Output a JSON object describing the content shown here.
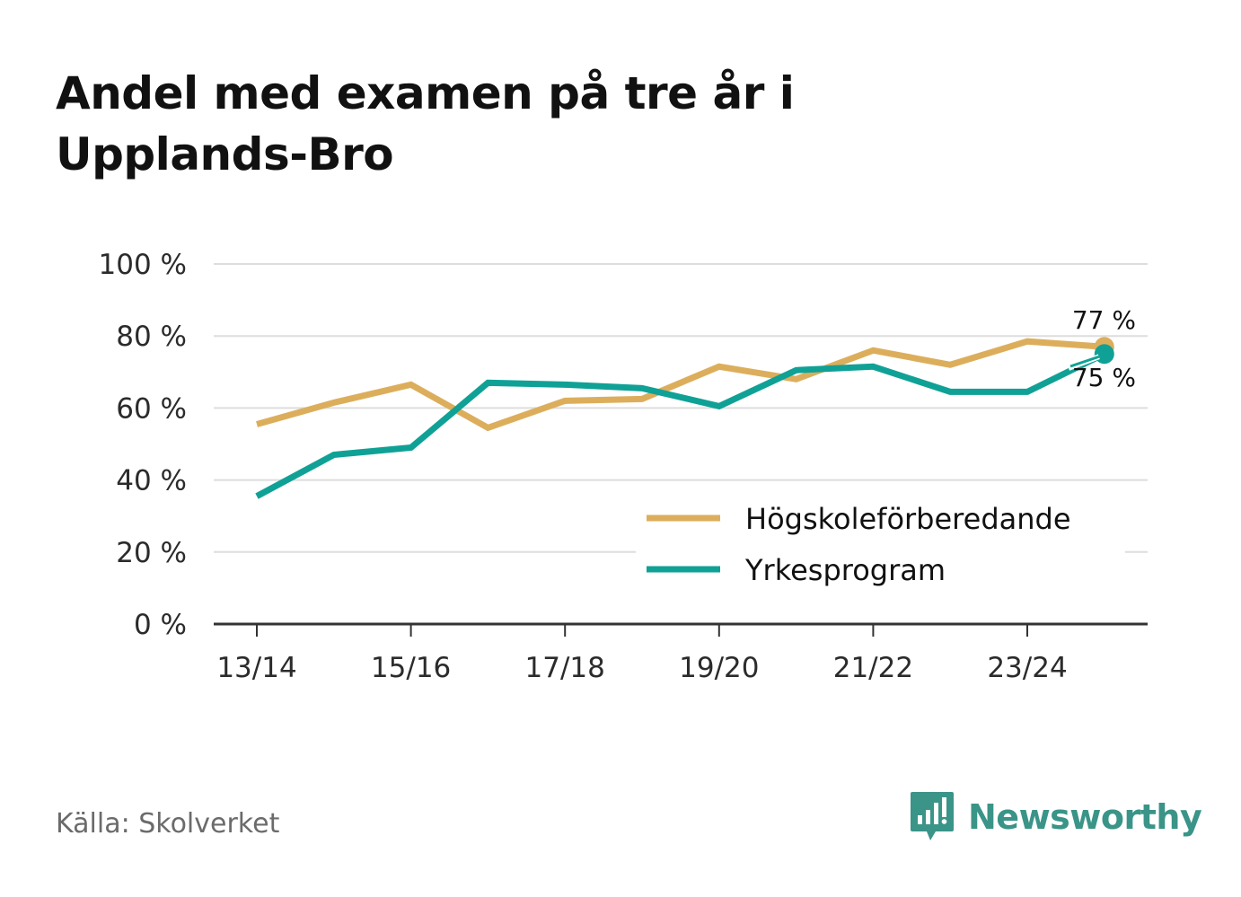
{
  "title_lines": [
    "Andel med examen på tre år i",
    "Upplands-Bro"
  ],
  "source": "Källa: Skolverket",
  "brand": {
    "name": "Newsworthy",
    "icon": "newsworthy-logo-icon",
    "color": "#3a9488"
  },
  "chart_data": {
    "type": "line",
    "title": "Andel med examen på tre år i Upplands-Bro",
    "xlabel": "",
    "ylabel": "",
    "x": [
      "13/14",
      "14/15",
      "15/16",
      "16/17",
      "17/18",
      "18/19",
      "19/20",
      "20/21",
      "21/22",
      "22/23",
      "23/24",
      "24/25"
    ],
    "x_tick_labels": [
      "13/14",
      "15/16",
      "17/18",
      "19/20",
      "21/22",
      "23/24"
    ],
    "ylim": [
      0,
      100
    ],
    "y_ticks": [
      0,
      20,
      40,
      60,
      80,
      100
    ],
    "y_tick_labels": [
      "0 %",
      "20 %",
      "40 %",
      "60 %",
      "80 %",
      "100 %"
    ],
    "grid": true,
    "legend_position": "bottom-right",
    "series": [
      {
        "name": "Högskoleförberedande",
        "color": "#dcae5c",
        "values": [
          55.5,
          61.5,
          66.5,
          54.5,
          62,
          62.5,
          71.5,
          68,
          76,
          72,
          78.5,
          77
        ],
        "end_label": "77 %"
      },
      {
        "name": "Yrkesprogram",
        "color": "#10a196",
        "values": [
          35.5,
          47,
          49,
          67,
          66.5,
          65.5,
          60.5,
          70.5,
          71.5,
          64.5,
          64.5,
          75
        ],
        "end_label": "75 %"
      }
    ]
  }
}
